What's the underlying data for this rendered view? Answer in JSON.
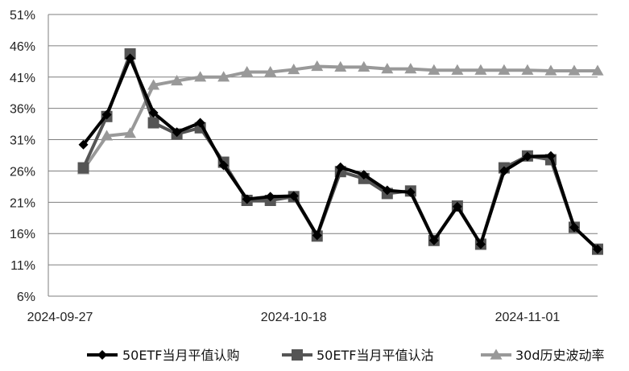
{
  "chart_data": {
    "type": "line",
    "title": "",
    "xlabel": "",
    "ylabel": "",
    "ylim": [
      6,
      51
    ],
    "yticks": [
      6,
      11,
      16,
      21,
      26,
      31,
      36,
      41,
      46,
      51
    ],
    "ytick_labels": [
      "6%",
      "11%",
      "16%",
      "21%",
      "26%",
      "31%",
      "36%",
      "41%",
      "46%",
      "51%"
    ],
    "x": [
      "2024-09-27",
      "2024-09-30",
      "2024-10-08",
      "2024-10-09",
      "2024-10-10",
      "2024-10-11",
      "2024-10-14",
      "2024-10-15",
      "2024-10-16",
      "2024-10-17",
      "2024-10-18",
      "2024-10-21",
      "2024-10-22",
      "2024-10-23",
      "2024-10-24",
      "2024-10-25",
      "2024-10-28",
      "2024-10-29",
      "2024-10-30",
      "2024-10-31",
      "2024-11-01",
      "2024-11-04",
      "2024-11-05",
      "2024-11-06"
    ],
    "xtick_labels": [
      {
        "index": 0,
        "label": "2024-09-27"
      },
      {
        "index": 10,
        "label": "2024-10-18"
      },
      {
        "index": 20,
        "label": "2024-11-01"
      }
    ],
    "grid": "horizontal",
    "legend_position": "bottom",
    "series": [
      {
        "name": "50ETF当月平值认购",
        "color": "#000000",
        "marker": "diamond",
        "values": [
          null,
          30.2,
          35.0,
          44.0,
          35.3,
          32.2,
          33.7,
          26.9,
          21.5,
          21.9,
          22.0,
          15.7,
          26.6,
          25.4,
          22.9,
          22.6,
          14.9,
          20.3,
          14.3,
          26.0,
          28.3,
          28.4,
          17.0,
          13.5
        ]
      },
      {
        "name": "50ETF当月平值认沽",
        "color": "#555555",
        "marker": "square",
        "values": [
          null,
          26.5,
          34.7,
          44.7,
          33.7,
          31.9,
          32.9,
          27.4,
          21.3,
          21.3,
          21.9,
          15.6,
          25.9,
          24.8,
          22.4,
          22.8,
          14.9,
          20.4,
          14.3,
          26.5,
          28.4,
          27.8,
          17.0,
          13.5
        ]
      },
      {
        "name": "30d历史波动率",
        "color": "#999999",
        "marker": "triangle",
        "values": [
          null,
          26.2,
          31.6,
          32.0,
          39.7,
          40.4,
          41.0,
          41.0,
          41.8,
          41.8,
          42.2,
          42.7,
          42.6,
          42.6,
          42.3,
          42.3,
          42.1,
          42.1,
          42.1,
          42.1,
          42.1,
          42.0,
          42.0,
          42.0
        ]
      }
    ]
  }
}
